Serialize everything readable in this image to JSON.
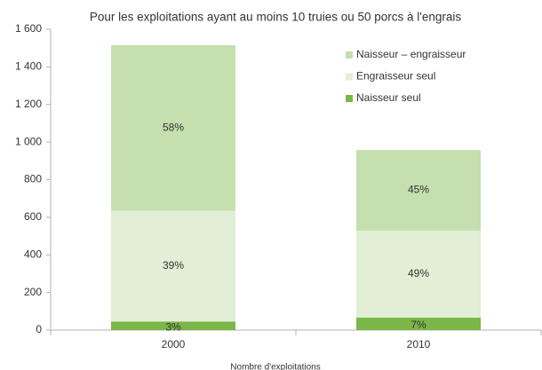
{
  "chart_data": {
    "type": "stacked_bar",
    "title": "Pour les exploitations ayant au moins 10 truies ou 50 porcs à l'engrais",
    "x_label": "Nombre d'exploitations",
    "categories": [
      "2000",
      "2010"
    ],
    "series": [
      {
        "name": "Naisseur seul",
        "color": "#7ab648",
        "values": [
          45,
          66
        ],
        "value_labels": [
          "3%",
          "7%"
        ]
      },
      {
        "name": "Engraisseur seul",
        "color": "#e2eed5",
        "values": [
          590,
          463
        ],
        "value_labels": [
          "39%",
          "49%"
        ]
      },
      {
        "name": "Naisseur – engraisseur",
        "color": "#c5dfae",
        "values": [
          880,
          429
        ],
        "value_labels": [
          "58%",
          "45%"
        ]
      }
    ],
    "ylim": [
      0,
      1600
    ],
    "yticks": [
      0,
      200,
      400,
      600,
      800,
      {
        "value": 1000,
        "label": "1 000"
      },
      {
        "value": 1200,
        "label": "1 200"
      },
      {
        "value": 1400,
        "label": "1 400"
      },
      {
        "value": 1600,
        "label": "1 600"
      }
    ],
    "grid": false,
    "legend": "upper right"
  }
}
